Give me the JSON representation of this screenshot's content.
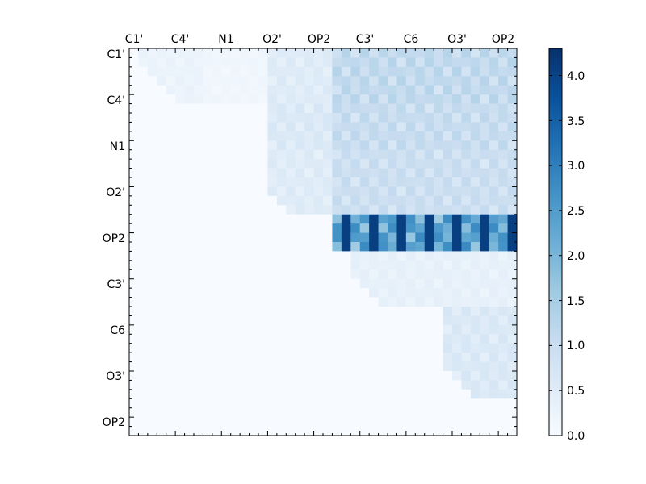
{
  "chart_data": {
    "type": "heatmap",
    "title": "",
    "xlabel": "",
    "ylabel": "",
    "x_ticks": [
      "C1'",
      "C4'",
      "N1",
      "O2'",
      "OP2",
      "C3'",
      "C6",
      "O3'",
      "OP2"
    ],
    "y_ticks": [
      "C1'",
      "C4'",
      "N1",
      "O2'",
      "OP2",
      "C3'",
      "C6",
      "O3'",
      "OP2"
    ],
    "x_axis_position": "top",
    "colormap": "Blues",
    "grid": false,
    "colorbar": {
      "position": "right",
      "range": [
        0,
        4.3
      ],
      "ticks": [
        "0.0",
        "0.5",
        "1.0",
        "1.5",
        "2.0",
        "2.5",
        "3.0",
        "3.5",
        "4.0"
      ]
    },
    "matrix_size": 42,
    "note_values": "upper-triangular block pattern; rows 18-22 vs columns 22-41 carry the largest values (up to ~4.3)",
    "row_band_values": [
      {
        "rows": [
          0,
          5
        ],
        "cols": [
          1,
          7
        ],
        "value": 0.3
      },
      {
        "rows": [
          0,
          5
        ],
        "cols": [
          8,
          14
        ],
        "value": 0.2
      },
      {
        "rows": [
          0,
          5
        ],
        "cols": [
          15,
          21
        ],
        "value": 0.6
      },
      {
        "rows": [
          0,
          5
        ],
        "cols": [
          22,
          41
        ],
        "value": 1.3
      },
      {
        "rows": [
          6,
          10
        ],
        "cols": [
          15,
          21
        ],
        "value": 0.7
      },
      {
        "rows": [
          6,
          10
        ],
        "cols": [
          22,
          41
        ],
        "value": 1.2
      },
      {
        "rows": [
          11,
          17
        ],
        "cols": [
          15,
          21
        ],
        "value": 0.6
      },
      {
        "rows": [
          11,
          17
        ],
        "cols": [
          22,
          41
        ],
        "value": 1.1
      },
      {
        "rows": [
          18,
          21
        ],
        "cols": [
          22,
          41
        ],
        "value": 2.8
      },
      {
        "rows": [
          22,
          27
        ],
        "cols": [
          24,
          41
        ],
        "value": 0.4
      },
      {
        "rows": [
          28,
          37
        ],
        "cols": [
          34,
          41
        ],
        "value": 0.7
      }
    ]
  }
}
